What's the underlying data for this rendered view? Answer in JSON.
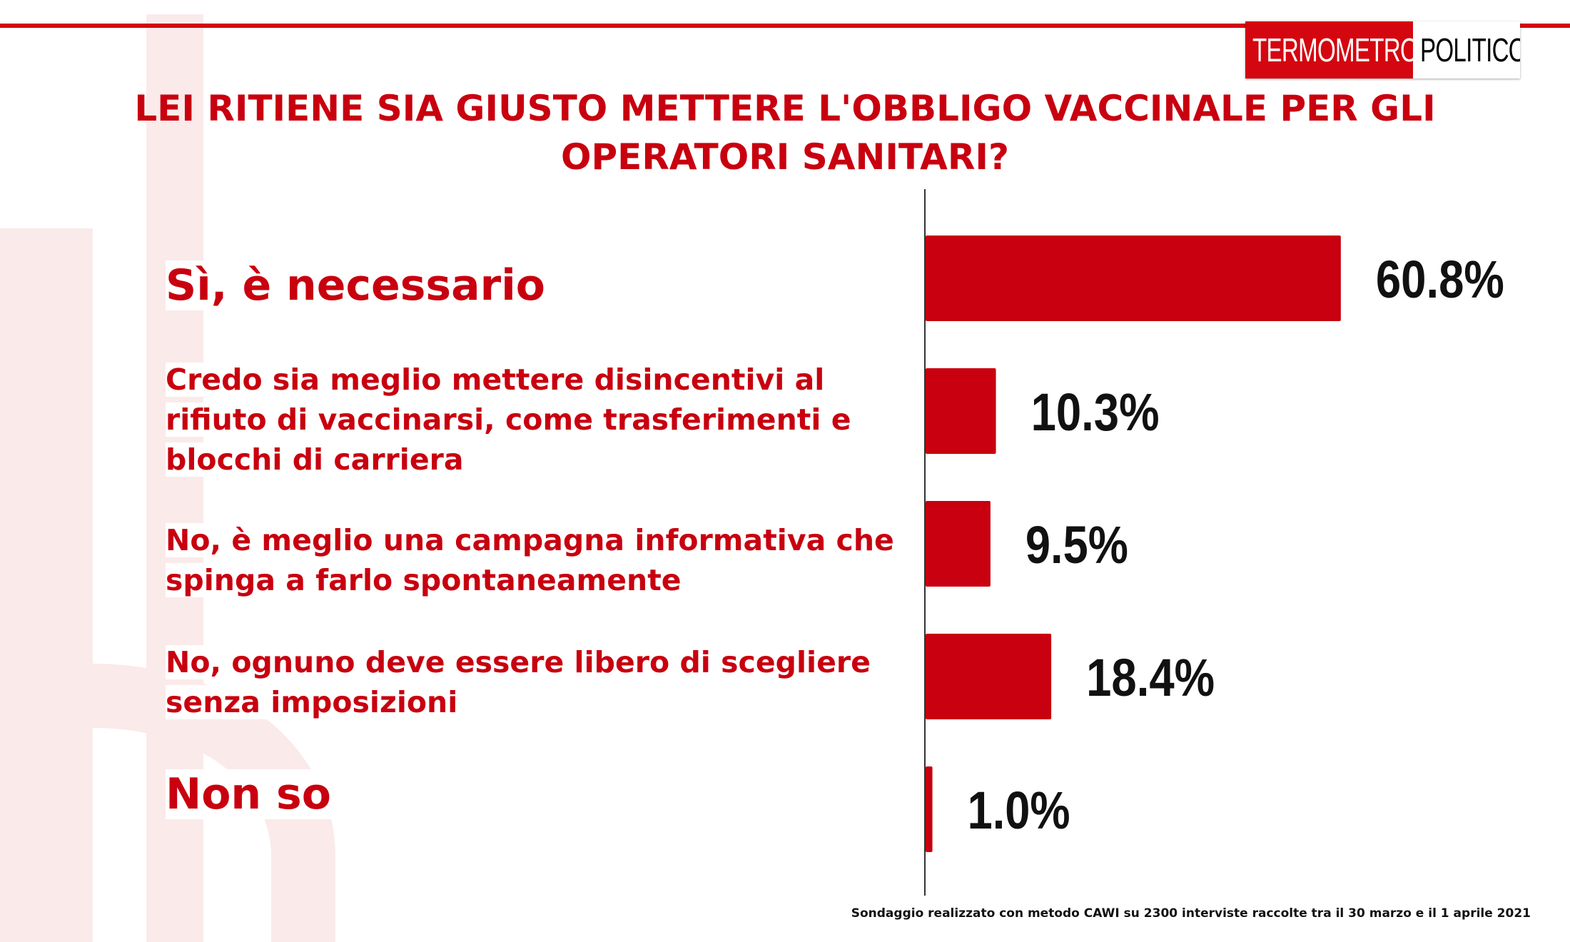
{
  "brand": {
    "part1": "TERMOMETRO",
    "part2": "POLITICO",
    "red": "#d4060f"
  },
  "title": "LEI RITIENE SIA GIUSTO METTERE L'OBBLIGO VACCINALE PER GLI OPERATORI SANITARI?",
  "footnote": "Sondaggio realizzato con metodo CAWI su 2300 interviste raccolte tra il 30 marzo  e il 1 aprile 2021",
  "chart_data": {
    "type": "bar",
    "orientation": "horizontal",
    "bar_color": "#c8000f",
    "categories": [
      "Sì, è necessario",
      "Credo sia meglio mettere disincentivi al rifiuto di vaccinarsi, come trasferimenti e blocchi di carriera",
      "No, è meglio una campagna informativa che spinga a farlo spontaneamente",
      "No, ognuno deve essere libero di scegliere senza imposizioni",
      "Non so"
    ],
    "values": [
      60.8,
      10.3,
      9.5,
      18.4,
      1.0
    ],
    "value_labels": [
      "60.8%",
      "10.3%",
      "9.5%",
      "18.4%",
      "1.0%"
    ],
    "xlim": [
      0,
      100
    ],
    "grid": false,
    "legend": "none"
  }
}
